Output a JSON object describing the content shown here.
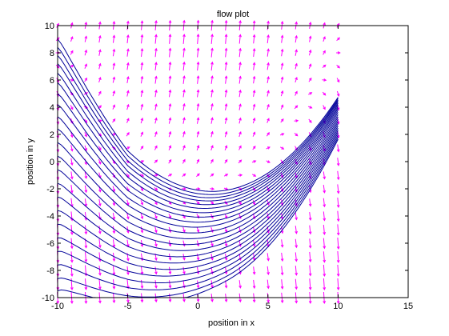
{
  "chart_data": {
    "type": "flow-field",
    "title": "flow plot",
    "xlabel": "position in x",
    "ylabel": "position in y",
    "xlim": [
      -10,
      15
    ],
    "ylim": [
      -10,
      10
    ],
    "xticks": [
      -10,
      -5,
      0,
      5,
      10,
      15
    ],
    "yticks": [
      -10,
      -8,
      -6,
      -4,
      -2,
      0,
      2,
      4,
      6,
      8,
      10
    ],
    "xtick_labels": [
      "-10",
      "-5",
      "0",
      "5",
      "10",
      "15"
    ],
    "ytick_labels": [
      "-10",
      "-8",
      "-6",
      "-4",
      "-2",
      "0",
      "2",
      "4",
      "6",
      "8",
      "10"
    ],
    "grid": false,
    "field": {
      "slope_rule": "dy/dx = y - x^2/10 + 2 (approximate)",
      "x_range": [
        -10,
        10
      ],
      "y_range": [
        -10,
        10
      ],
      "arrow_color": "#ff00ff"
    },
    "streamlines": {
      "color": "#000099",
      "x_range": [
        -10,
        10
      ],
      "start_x": -10,
      "start_y": [
        9,
        8.4,
        7.8,
        7.2,
        6.5,
        5.8,
        5,
        4.2,
        3.3,
        2.4,
        1.4,
        0.4,
        -0.6,
        -1.6,
        -2.6,
        -3.6,
        -4.6,
        -5.6,
        -6.6,
        -7.6,
        -8.6,
        -9.5
      ]
    }
  }
}
